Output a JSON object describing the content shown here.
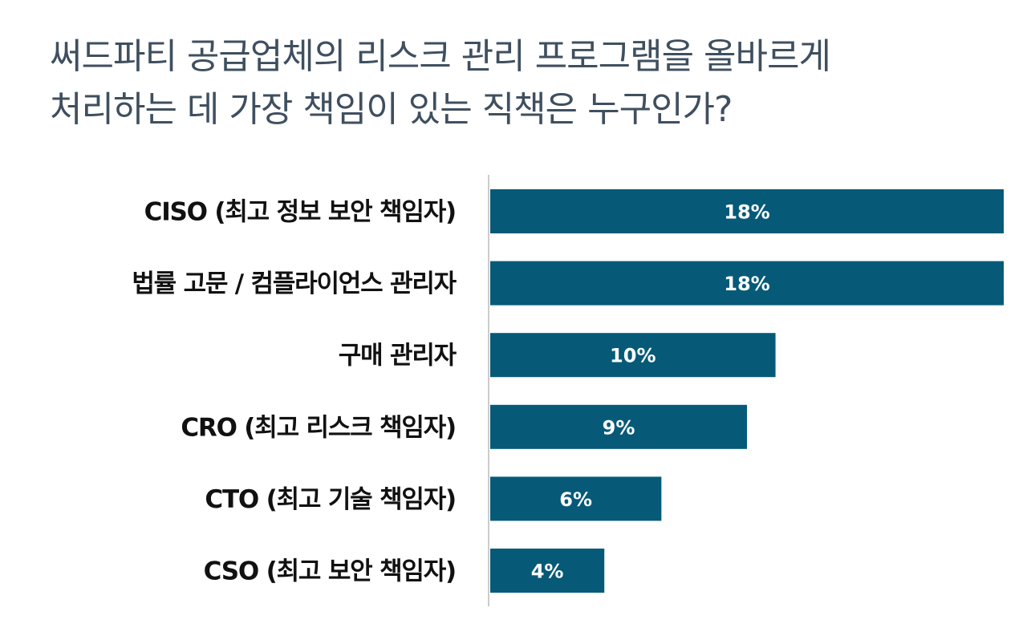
{
  "title_lines": [
    "써드파티 공급업체의 리스크 관리 프로그램을 올바르게",
    "처리하는 데 가장 책임이 있는 직책은 누구인가?"
  ],
  "chart_data": {
    "type": "bar",
    "orientation": "horizontal",
    "title": "써드파티 공급업체의 리스크 관리 프로그램을 올바르게 처리하는 데 가장 책임이 있는 직책은 누구인가?",
    "categories": [
      "CISO (최고 정보 보안 책임자)",
      "법률 고문 / 컴플라이언스 관리자",
      "구매 관리자",
      "CRO (최고 리스크 책임자)",
      "CTO (최고 기술 책임자)",
      "CSO (최고 보안 책임자)"
    ],
    "values": [
      18,
      18,
      10,
      9,
      6,
      4
    ],
    "value_labels": [
      "18%",
      "18%",
      "10%",
      "9%",
      "6%",
      "4%"
    ],
    "unit": "%",
    "xlim": [
      0,
      18
    ],
    "bar_color": "#065a78",
    "axis_color": "#cccccc",
    "grid": false,
    "legend": "none"
  }
}
